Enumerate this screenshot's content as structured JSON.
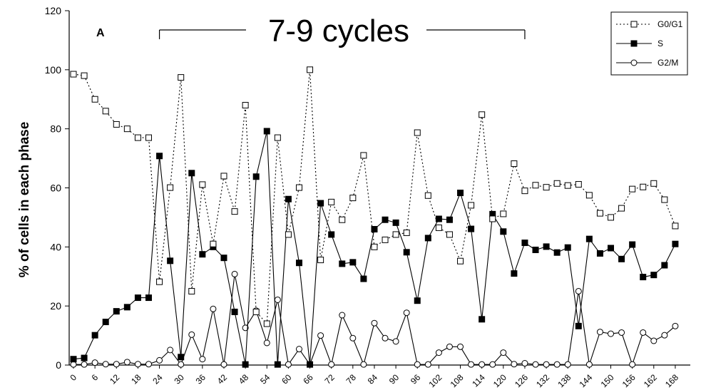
{
  "chart_data": {
    "type": "line",
    "panel_label": "A",
    "title": "",
    "annotation": "7-9 cycles",
    "xlabel": "",
    "ylabel": "% of cells in each phase",
    "xlim": [
      0,
      171
    ],
    "ylim": [
      0,
      120
    ],
    "y_ticks": [
      "0",
      "20",
      "40",
      "60",
      "80",
      "100",
      "120"
    ],
    "x_ticks": [
      "0",
      "6",
      "12",
      "18",
      "24",
      "30",
      "36",
      "42",
      "48",
      "54",
      "60",
      "66",
      "72",
      "78",
      "84",
      "90",
      "96",
      "102",
      "108",
      "114",
      "120",
      "126",
      "132",
      "138",
      "144",
      "150",
      "156",
      "162",
      "168"
    ],
    "grid": false,
    "legend_position": "top-right",
    "series": [
      {
        "name": "G0/G1",
        "style": "dotted",
        "marker": "open-square",
        "values": [
          [
            0,
            98.5
          ],
          [
            3,
            98
          ],
          [
            6,
            90
          ],
          [
            9,
            86
          ],
          [
            12,
            81.5
          ],
          [
            15,
            80
          ],
          [
            18,
            77
          ],
          [
            21,
            77
          ],
          [
            24,
            28.2
          ],
          [
            27,
            60.1
          ],
          [
            30,
            97.4
          ],
          [
            33,
            25
          ],
          [
            36,
            61.1
          ],
          [
            39,
            41
          ],
          [
            42,
            64
          ],
          [
            45,
            52
          ],
          [
            48,
            88
          ],
          [
            51,
            18
          ],
          [
            54,
            14
          ],
          [
            57,
            77
          ],
          [
            60,
            44.2
          ],
          [
            63,
            60.1
          ],
          [
            66,
            100
          ],
          [
            69,
            35.6
          ],
          [
            72,
            55.2
          ],
          [
            75,
            49.2
          ],
          [
            78,
            56.6
          ],
          [
            81,
            71
          ],
          [
            84,
            40
          ],
          [
            87,
            42.4
          ],
          [
            90,
            44.2
          ],
          [
            93,
            44.8
          ],
          [
            96,
            78.7
          ],
          [
            99,
            57.4
          ],
          [
            102,
            46.5
          ],
          [
            105,
            44.2
          ],
          [
            108,
            35.2
          ],
          [
            111,
            54.1
          ],
          [
            114,
            84.8
          ],
          [
            117,
            49.5
          ],
          [
            120,
            51.2
          ],
          [
            123,
            68.2
          ],
          [
            126,
            59
          ],
          [
            129,
            60.9
          ],
          [
            132,
            60.2
          ],
          [
            135,
            61.5
          ],
          [
            138,
            60.8
          ],
          [
            141,
            61.2
          ],
          [
            144,
            57.5
          ],
          [
            147,
            51.4
          ],
          [
            150,
            50
          ],
          [
            153,
            53.1
          ],
          [
            156,
            59.6
          ],
          [
            159,
            60.3
          ],
          [
            162,
            61.5
          ],
          [
            165,
            56
          ],
          [
            168,
            47.1
          ]
        ]
      },
      {
        "name": "S",
        "style": "solid",
        "marker": "filled-square",
        "values": [
          [
            0,
            2
          ],
          [
            3,
            2.4
          ],
          [
            6,
            10.1
          ],
          [
            9,
            14.6
          ],
          [
            12,
            18.2
          ],
          [
            15,
            19.6
          ],
          [
            18,
            22.8
          ],
          [
            21,
            22.8
          ],
          [
            24,
            70.8
          ],
          [
            27,
            35.3
          ],
          [
            30,
            2.7
          ],
          [
            33,
            65
          ],
          [
            36,
            37.5
          ],
          [
            39,
            40
          ],
          [
            42,
            36.3
          ],
          [
            45,
            18
          ],
          [
            48,
            0.2
          ],
          [
            51,
            63.8
          ],
          [
            54,
            79.2
          ],
          [
            57,
            0.2
          ],
          [
            60,
            56.2
          ],
          [
            63,
            34.6
          ],
          [
            66,
            0.2
          ],
          [
            69,
            54.8
          ],
          [
            72,
            44.2
          ],
          [
            75,
            34.3
          ],
          [
            78,
            34.8
          ],
          [
            81,
            29.2
          ],
          [
            84,
            46
          ],
          [
            87,
            49.2
          ],
          [
            90,
            48.2
          ],
          [
            93,
            38.2
          ],
          [
            96,
            21.8
          ],
          [
            99,
            43
          ],
          [
            102,
            49.5
          ],
          [
            105,
            49.2
          ],
          [
            108,
            58.3
          ],
          [
            111,
            46.1
          ],
          [
            114,
            15.5
          ],
          [
            117,
            51.1
          ],
          [
            120,
            45.2
          ],
          [
            123,
            31
          ],
          [
            126,
            41.4
          ],
          [
            129,
            39
          ],
          [
            132,
            40.1
          ],
          [
            135,
            38.1
          ],
          [
            138,
            39.8
          ],
          [
            141,
            13.2
          ],
          [
            144,
            42.7
          ],
          [
            147,
            37.8
          ],
          [
            150,
            39.6
          ],
          [
            153,
            35.9
          ],
          [
            156,
            40.8
          ],
          [
            159,
            29.8
          ],
          [
            162,
            30.5
          ],
          [
            165,
            33.8
          ],
          [
            168,
            41
          ]
        ]
      },
      {
        "name": "G2/M",
        "style": "solid",
        "marker": "open-circle",
        "values": [
          [
            0,
            0.2
          ],
          [
            3,
            0.2
          ],
          [
            6,
            0.8
          ],
          [
            9,
            0.3
          ],
          [
            12,
            0.3
          ],
          [
            15,
            1
          ],
          [
            18,
            0.3
          ],
          [
            21,
            0.3
          ],
          [
            24,
            1.6
          ],
          [
            27,
            5.1
          ],
          [
            30,
            0.2
          ],
          [
            33,
            10.3
          ],
          [
            36,
            2
          ],
          [
            39,
            19
          ],
          [
            42,
            0.2
          ],
          [
            45,
            30.8
          ],
          [
            48,
            12.6
          ],
          [
            51,
            18.4
          ],
          [
            54,
            7.5
          ],
          [
            57,
            22.1
          ],
          [
            60,
            0.2
          ],
          [
            63,
            5.4
          ],
          [
            66,
            0.2
          ],
          [
            69,
            10
          ],
          [
            72,
            0.2
          ],
          [
            75,
            16.9
          ],
          [
            78,
            9.1
          ],
          [
            81,
            0.2
          ],
          [
            84,
            14.2
          ],
          [
            87,
            9.1
          ],
          [
            90,
            8
          ],
          [
            93,
            17.7
          ],
          [
            96,
            0.2
          ],
          [
            99,
            0.2
          ],
          [
            102,
            4.2
          ],
          [
            105,
            6.2
          ],
          [
            108,
            6.2
          ],
          [
            111,
            0.2
          ],
          [
            114,
            0.2
          ],
          [
            117,
            0.2
          ],
          [
            120,
            4.2
          ],
          [
            123,
            0.3
          ],
          [
            126,
            0.6
          ],
          [
            129,
            0.2
          ],
          [
            132,
            0.2
          ],
          [
            135,
            0.2
          ],
          [
            138,
            0.2
          ],
          [
            141,
            25
          ],
          [
            144,
            0.2
          ],
          [
            147,
            11.2
          ],
          [
            150,
            10.6
          ],
          [
            153,
            11
          ],
          [
            156,
            0.2
          ],
          [
            159,
            11
          ],
          [
            162,
            8.2
          ],
          [
            165,
            10.1
          ],
          [
            168,
            13.2
          ]
        ]
      }
    ]
  }
}
